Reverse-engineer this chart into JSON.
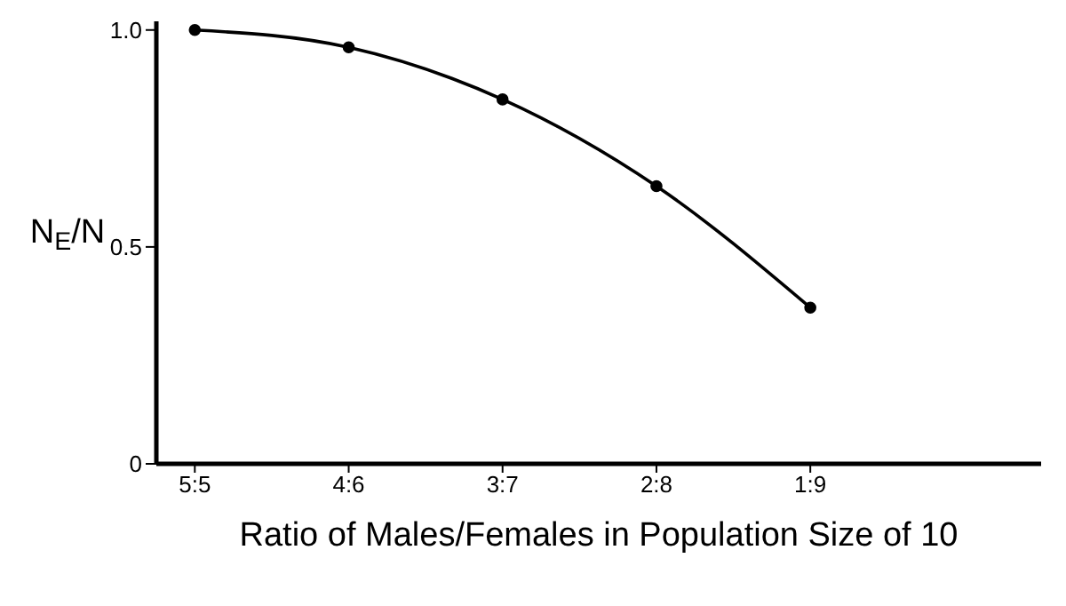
{
  "chart_data": {
    "type": "line",
    "xlabel": "Ratio of Males/Females in Population Size of 10",
    "ylabel": "N$_{E}$/N",
    "categories": [
      "5:5",
      "4:6",
      "3:7",
      "2:8",
      "1:9"
    ],
    "series": [
      {
        "color": "#000000",
        "values": [
          1.0,
          0.96,
          0.84,
          0.64,
          0.36
        ]
      }
    ],
    "ylim": [
      0,
      1.02
    ],
    "yticks": [
      0,
      0.5,
      {
        "value": 1.0,
        "label": "1.0"
      }
    ],
    "grid": false,
    "legend": false,
    "marker": "circle",
    "line_style": "solid"
  }
}
